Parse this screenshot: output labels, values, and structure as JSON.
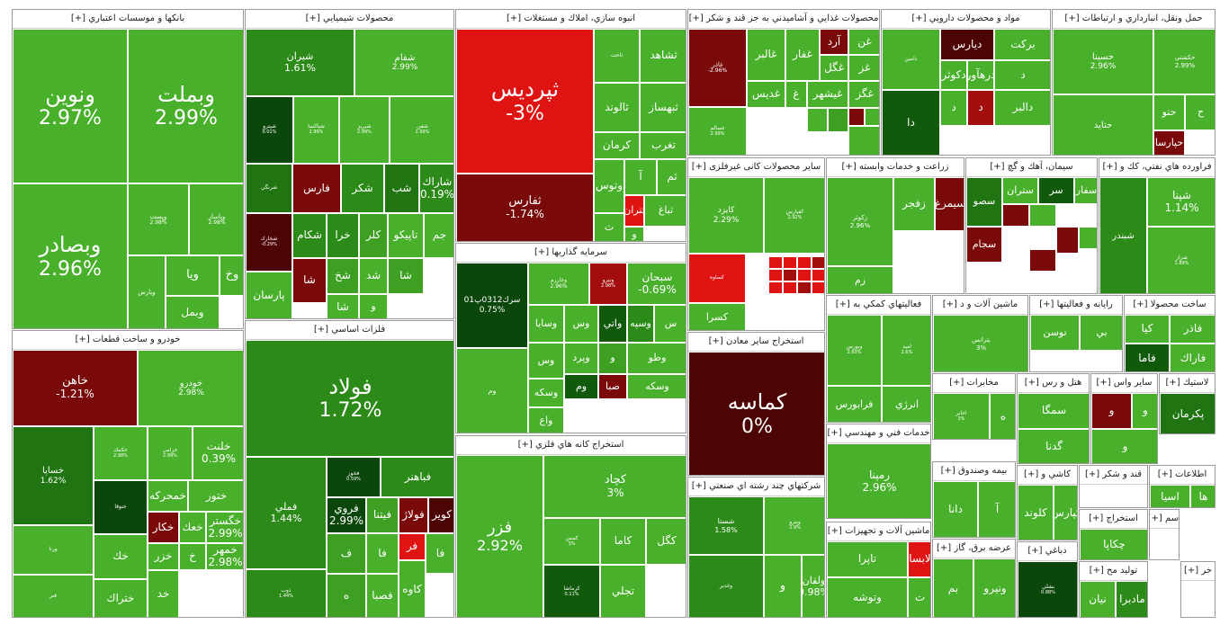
{
  "chart_data": {
    "type": "treemap",
    "colors": {
      "g0": "#48b02a",
      "g1": "#3ea022",
      "g2": "#2b8a18",
      "g3": "#207412",
      "g4": "#115a0c",
      "g5": "#0b460a",
      "r1": "#e01313",
      "r2": "#a20d0d",
      "r3": "#7a0a0a",
      "r4": "#4d0404"
    },
    "sectors": [
      {
        "name": "بانکها و موسسات اعتباري",
        "plus": "[+]",
        "stocks": [
          {
            "name": "ونوین",
            "change": "2.97%"
          },
          {
            "name": "وبملت",
            "change": "2.99%"
          },
          {
            "name": "وبصادر",
            "change": "2.96%"
          },
          {
            "name": "وپست",
            "change": "2.98%"
          },
          {
            "name": "وپاسار",
            "change": "2.98%"
          },
          {
            "name": "ويارس",
            "change": ""
          },
          {
            "name": "ويا",
            "change": ""
          },
          {
            "name": "وخ",
            "change": ""
          },
          {
            "name": "وبمل",
            "change": ""
          }
        ]
      },
      {
        "name": "محصولات شيميايي",
        "plus": "[+]",
        "stocks": [
          {
            "name": "شيران",
            "change": "1.61%"
          },
          {
            "name": "شفام",
            "change": "2.99%"
          },
          {
            "name": "شپترو",
            "change": "0.01%"
          },
          {
            "name": "شپاكسا",
            "change": "2.99%"
          },
          {
            "name": "شبريز",
            "change": "2.99%"
          },
          {
            "name": "شفن",
            "change": "2.99%"
          },
          {
            "name": "شرنگي",
            "change": ""
          },
          {
            "name": "فارس",
            "change": ""
          },
          {
            "name": "شكر",
            "change": ""
          },
          {
            "name": "شب",
            "change": ""
          },
          {
            "name": "شاراك",
            "change": "0.19%"
          },
          {
            "name": "شخارك",
            "change": "-0.29%"
          },
          {
            "name": "شكام",
            "change": ""
          },
          {
            "name": "خرا",
            "change": ""
          },
          {
            "name": "كلر",
            "change": ""
          },
          {
            "name": "تاپيكو",
            "change": ""
          },
          {
            "name": "جم",
            "change": ""
          },
          {
            "name": "شا",
            "change": ""
          },
          {
            "name": "شخ",
            "change": ""
          },
          {
            "name": "شد",
            "change": ""
          },
          {
            "name": "شا",
            "change": ""
          },
          {
            "name": "پارسان",
            "change": ""
          },
          {
            "name": "شا",
            "change": ""
          },
          {
            "name": "و",
            "change": ""
          }
        ]
      },
      {
        "name": "انبوه سازي، املاك و مستغلات",
        "plus": "[+]",
        "stocks": [
          {
            "name": "ثپرديس",
            "change": "-3%"
          },
          {
            "name": "ثفارس",
            "change": "-1.74%"
          },
          {
            "name": "ثاخت",
            "change": ""
          },
          {
            "name": "ثشاهد",
            "change": ""
          },
          {
            "name": "ثالوند",
            "change": ""
          },
          {
            "name": "ثبهساز",
            "change": ""
          },
          {
            "name": "كرمان",
            "change": ""
          },
          {
            "name": "تغرب",
            "change": ""
          },
          {
            "name": "وتوس",
            "change": ""
          },
          {
            "name": "آ",
            "change": ""
          },
          {
            "name": "ثم",
            "change": ""
          },
          {
            "name": "ثتران",
            "change": ""
          },
          {
            "name": "ثباغ",
            "change": ""
          },
          {
            "name": "ث",
            "change": ""
          },
          {
            "name": "و",
            "change": ""
          }
        ]
      },
      {
        "name": "محصولات غذايي و آشاميدني به جز قند و شكر",
        "plus": "[+]",
        "stocks": [
          {
            "name": "غاذر",
            "change": "-2.96%"
          },
          {
            "name": "غالبر",
            "change": ""
          },
          {
            "name": "غفار",
            "change": ""
          },
          {
            "name": "آرد",
            "change": ""
          },
          {
            "name": "غن",
            "change": ""
          },
          {
            "name": "غگل",
            "change": ""
          },
          {
            "name": "غز",
            "change": ""
          },
          {
            "name": "غديس",
            "change": ""
          },
          {
            "name": "غ",
            "change": ""
          },
          {
            "name": "غيشهر",
            "change": ""
          },
          {
            "name": "غگز",
            "change": ""
          },
          {
            "name": "غسالم",
            "change": "2.99%"
          }
        ]
      },
      {
        "name": "مواد و محصولات دارويي",
        "plus": "[+]",
        "stocks": [
          {
            "name": "دامين",
            "change": ""
          },
          {
            "name": "ديارس",
            "change": ""
          },
          {
            "name": "بركت",
            "change": ""
          },
          {
            "name": "دكوثر",
            "change": ""
          },
          {
            "name": "درهآور",
            "change": ""
          },
          {
            "name": "د",
            "change": ""
          },
          {
            "name": "دا",
            "change": ""
          },
          {
            "name": "د",
            "change": ""
          },
          {
            "name": "د",
            "change": ""
          },
          {
            "name": "دالبر",
            "change": ""
          }
        ]
      },
      {
        "name": "حمل ونقل، انبارداري و ارتباطات",
        "plus": "[+]",
        "stocks": [
          {
            "name": "حسينا",
            "change": "2.96%"
          },
          {
            "name": "حكشتي",
            "change": "2.99%"
          },
          {
            "name": "حتايد",
            "change": ""
          },
          {
            "name": "حتو",
            "change": ""
          },
          {
            "name": "ح",
            "change": ""
          },
          {
            "name": "حپارسا",
            "change": ""
          }
        ]
      },
      {
        "name": "سرمايه گذاريها",
        "plus": "[+]",
        "stocks": [
          {
            "name": "سرك0312پ01",
            "change": "0.75%"
          },
          {
            "name": "وخارزم",
            "change": "2.96%"
          },
          {
            "name": "ونيرو",
            "change": "2.98%"
          },
          {
            "name": "سبحان",
            "change": "-0.69%"
          },
          {
            "name": "وسايا",
            "change": ""
          },
          {
            "name": "وس",
            "change": ""
          },
          {
            "name": "واتي",
            "change": ""
          },
          {
            "name": "وسپه",
            "change": ""
          },
          {
            "name": "س",
            "change": ""
          },
          {
            "name": "وم",
            "change": ""
          },
          {
            "name": "وس",
            "change": ""
          },
          {
            "name": "وپرد",
            "change": ""
          },
          {
            "name": "و",
            "change": ""
          },
          {
            "name": "وطو",
            "change": ""
          },
          {
            "name": "وسكه",
            "change": ""
          },
          {
            "name": "وم",
            "change": ""
          },
          {
            "name": "صبا",
            "change": ""
          },
          {
            "name": "وسكه",
            "change": ""
          },
          {
            "name": "واع",
            "change": ""
          }
        ]
      },
      {
        "name": "سيمان، آهك و گچ",
        "plus": "[+]",
        "stocks": [
          {
            "name": "سصو",
            "change": ""
          },
          {
            "name": "ستران",
            "change": ""
          },
          {
            "name": "سر",
            "change": ""
          },
          {
            "name": "سفار",
            "change": ""
          },
          {
            "name": "سجام",
            "change": ""
          }
        ]
      },
      {
        "name": "سایر محصولات کانی غیرفلزی",
        "plus": "[+]",
        "stocks": [
          {
            "name": "كايزد",
            "change": "2.29%"
          },
          {
            "name": "كفپارس",
            "change": "2.92%"
          },
          {
            "name": "كساوه",
            "change": ""
          },
          {
            "name": "كسرا",
            "change": ""
          }
        ]
      },
      {
        "name": "زراعت و خدمات وابسته",
        "plus": "[+]",
        "stocks": [
          {
            "name": "زكوثر",
            "change": "2.96%"
          },
          {
            "name": "زفجر",
            "change": ""
          },
          {
            "name": "سيمرغ",
            "change": ""
          },
          {
            "name": "زم",
            "change": ""
          }
        ]
      },
      {
        "name": "فراورده هاي نفتي، كك و",
        "plus": "[+]",
        "stocks": [
          {
            "name": "شبندر",
            "change": ""
          },
          {
            "name": "شپنا",
            "change": "1.14%"
          },
          {
            "name": "شراز",
            "change": "1.89%"
          }
        ]
      },
      {
        "name": "فلزات اساسي",
        "plus": "[+]",
        "stocks": [
          {
            "name": "فولاد",
            "change": "1.72%"
          },
          {
            "name": "فملي",
            "change": "1.44%"
          },
          {
            "name": "ذوب",
            "change": "1.44%"
          },
          {
            "name": "فخوز",
            "change": "0.59%"
          },
          {
            "name": "فباهنر",
            "change": ""
          },
          {
            "name": "فروي",
            "change": "2.99%"
          },
          {
            "name": "فيتنا",
            "change": ""
          },
          {
            "name": "فولاژ",
            "change": ""
          },
          {
            "name": "كوير",
            "change": ""
          },
          {
            "name": "ف",
            "change": ""
          },
          {
            "name": "فا",
            "change": ""
          },
          {
            "name": "فر",
            "change": ""
          },
          {
            "name": "فا",
            "change": ""
          },
          {
            "name": "ه",
            "change": ""
          },
          {
            "name": "فصبا",
            "change": ""
          },
          {
            "name": "كاوه",
            "change": ""
          }
        ]
      },
      {
        "name": "خودرو و ساخت قطعات",
        "plus": "[+]",
        "stocks": [
          {
            "name": "خاهن",
            "change": "-1.21%"
          },
          {
            "name": "خودرو",
            "change": "2.98%"
          },
          {
            "name": "خساپا",
            "change": "1.62%"
          },
          {
            "name": "خكمك",
            "change": "2.98%"
          },
          {
            "name": "خرامي",
            "change": "2.99%"
          },
          {
            "name": "خلنت",
            "change": "0.39%"
          },
          {
            "name": "ختوقا",
            "change": ""
          },
          {
            "name": "خمحركه",
            "change": ""
          },
          {
            "name": "ختور",
            "change": ""
          },
          {
            "name": "خكار",
            "change": ""
          },
          {
            "name": "خعك",
            "change": ""
          },
          {
            "name": "خگستر",
            "change": "2.99%"
          },
          {
            "name": "ورنا",
            "change": ""
          },
          {
            "name": "خك",
            "change": ""
          },
          {
            "name": "خزر",
            "change": ""
          },
          {
            "name": "خ",
            "change": ""
          },
          {
            "name": "خمهر",
            "change": "2.98%"
          },
          {
            "name": "فنر",
            "change": ""
          },
          {
            "name": "ختراك",
            "change": ""
          },
          {
            "name": "خد",
            "change": ""
          }
        ]
      },
      {
        "name": "استخراج كانه هاي فلزي",
        "plus": "[+]",
        "stocks": [
          {
            "name": "فزر",
            "change": "2.92%"
          },
          {
            "name": "كچاد",
            "change": "3%"
          },
          {
            "name": "كمس",
            "change": "3%"
          },
          {
            "name": "كاما",
            "change": ""
          },
          {
            "name": "كگل",
            "change": ""
          },
          {
            "name": "كرماشا",
            "change": "0.11%"
          },
          {
            "name": "تجلي",
            "change": ""
          }
        ]
      },
      {
        "name": "استخراج ساير معادن",
        "plus": "[+]",
        "stocks": [
          {
            "name": "كماسه",
            "change": "0%"
          }
        ]
      },
      {
        "name": "شركتهاي چند رشته اي صنعتي",
        "plus": "[+]",
        "stocks": [
          {
            "name": "شستا",
            "change": "1.58%"
          },
          {
            "name": "وپترو",
            "change": "2.9%"
          },
          {
            "name": "وغدير",
            "change": ""
          },
          {
            "name": "و",
            "change": ""
          },
          {
            "name": "ولقان",
            "change": "0.98%"
          }
        ]
      },
      {
        "name": "فعاليتهاي كمكي به",
        "plus": "[+]",
        "stocks": [
          {
            "name": "وبورس",
            "change": "2.93%"
          },
          {
            "name": "اميد",
            "change": "2.6%"
          },
          {
            "name": "فرابورس",
            "change": ""
          },
          {
            "name": "انرژي",
            "change": ""
          }
        ]
      },
      {
        "name": "ماشين آلات و د",
        "plus": "[+]",
        "stocks": [
          {
            "name": "بترانس",
            "change": "3%"
          }
        ]
      },
      {
        "name": "رايانه و فعاليتها",
        "plus": "[+]",
        "stocks": [
          {
            "name": "توسن",
            "change": ""
          },
          {
            "name": "بي",
            "change": ""
          }
        ]
      },
      {
        "name": "ساخت محصولا",
        "plus": "[+]",
        "stocks": [
          {
            "name": "كيا",
            "change": ""
          },
          {
            "name": "فاذر",
            "change": ""
          },
          {
            "name": "فاما",
            "change": ""
          },
          {
            "name": "فاراك",
            "change": ""
          }
        ]
      },
      {
        "name": "مخابرات",
        "plus": "[+]",
        "stocks": [
          {
            "name": "اخابر",
            "change": "3%"
          },
          {
            "name": "ه",
            "change": ""
          }
        ]
      },
      {
        "name": "هتل و رس",
        "plus": "[+]",
        "stocks": [
          {
            "name": "سمگا",
            "change": ""
          },
          {
            "name": "گدنا",
            "change": ""
          }
        ]
      },
      {
        "name": "ساير واس",
        "plus": "[+]",
        "stocks": [
          {
            "name": "و",
            "change": ""
          },
          {
            "name": "و",
            "change": ""
          },
          {
            "name": "و",
            "change": ""
          }
        ]
      },
      {
        "name": "لاستيك",
        "plus": "[+]",
        "stocks": [
          {
            "name": "پكرمان",
            "change": ""
          }
        ]
      },
      {
        "name": "خدمات فني و مهندسي",
        "plus": "[+]",
        "stocks": [
          {
            "name": "رمپنا",
            "change": "2.96%"
          }
        ]
      },
      {
        "name": "بيمه وصندوق",
        "plus": "[+]",
        "stocks": [
          {
            "name": "دانا",
            "change": ""
          },
          {
            "name": "آ",
            "change": ""
          }
        ]
      },
      {
        "name": "كاشي و",
        "plus": "[+]",
        "stocks": [
          {
            "name": "كلوند",
            "change": ""
          },
          {
            "name": "كپارس",
            "change": ""
          },
          {
            "name": "ك",
            "change": ""
          }
        ]
      },
      {
        "name": "قند و شكر",
        "plus": "[+]",
        "stocks": []
      },
      {
        "name": "اطلاعات",
        "plus": "[+]",
        "stocks": [
          {
            "name": "اسيا",
            "change": ""
          },
          {
            "name": "ها",
            "change": ""
          }
        ]
      },
      {
        "name": "ماشين آلات و تجهيزات",
        "plus": "[+]",
        "stocks": [
          {
            "name": "تاپرا",
            "change": ""
          },
          {
            "name": "لابسا",
            "change": ""
          },
          {
            "name": "وتوشه",
            "change": ""
          },
          {
            "name": "ت",
            "change": ""
          },
          {
            "name": "گلديرا",
            "change": ""
          }
        ]
      },
      {
        "name": "عرضه برق، گاز",
        "plus": "[+]",
        "stocks": [
          {
            "name": "بم",
            "change": ""
          },
          {
            "name": "ونيرو",
            "change": ""
          }
        ]
      },
      {
        "name": "دباغي",
        "plus": "[+]",
        "stocks": [
          {
            "name": "بشلي",
            "change": "0.88%"
          }
        ]
      },
      {
        "name": "استخراج",
        "plus": "[+]",
        "stocks": [
          {
            "name": "چكاپا",
            "change": ""
          }
        ]
      },
      {
        "name": "سم",
        "plus": "[+]",
        "stocks": []
      },
      {
        "name": "توليد مح",
        "plus": "[+]",
        "stocks": [
          {
            "name": "نيان",
            "change": ""
          },
          {
            "name": "مادبرا",
            "change": ""
          }
        ]
      },
      {
        "name": "خر",
        "plus": "[+]",
        "stocks": []
      }
    ]
  }
}
